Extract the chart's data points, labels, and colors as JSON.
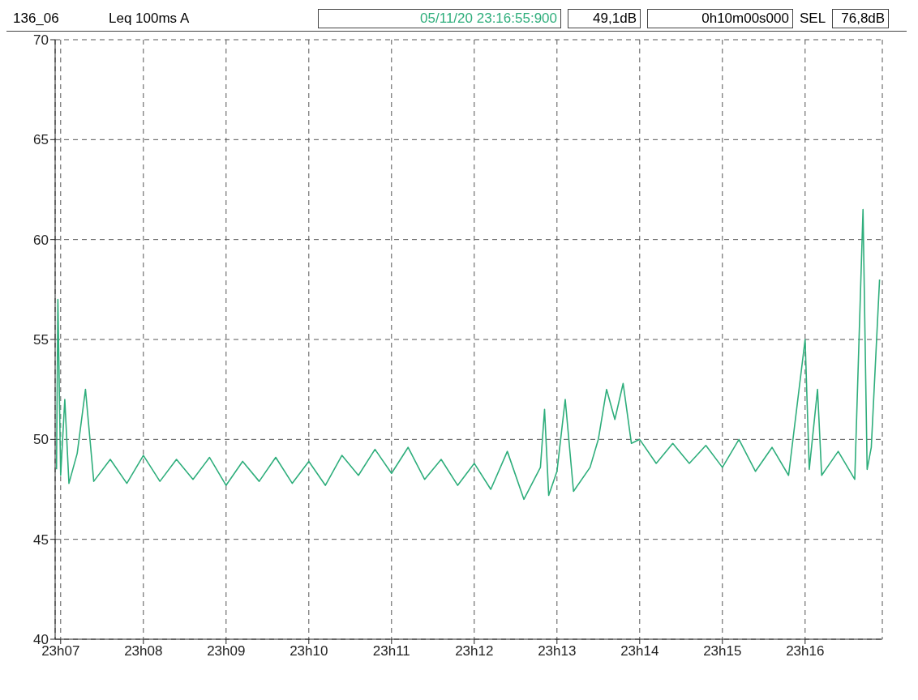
{
  "chart_data": {
    "type": "line",
    "annotations": [
      "136_06",
      "Leq 100ms  A",
      "05/11/20 23:16:55:900",
      "49,1dB",
      "0h10m00s000",
      "SEL",
      "76,8dB"
    ],
    "xlim": [
      "--11-05T23:06:56",
      "--11-05T23:16:56"
    ],
    "xticks": [
      {
        "value": "--11-05T23:07",
        "label": "23h07"
      },
      {
        "value": "--11-05T23:08",
        "label": "23h08"
      },
      {
        "value": "--11-05T23:09",
        "label": "23h09"
      },
      {
        "value": "--11-05T23:10",
        "label": "23h10"
      },
      {
        "value": "--11-05T23:11",
        "label": "23h11"
      },
      {
        "value": "--11-05T23:12",
        "label": "23h12"
      },
      {
        "value": "--11-05T23:13",
        "label": "23h13"
      },
      {
        "value": "--11-05T23:14",
        "label": "23h14"
      },
      {
        "value": "--11-05T23:15",
        "label": "23h15"
      },
      {
        "value": "--11-05T23:16",
        "label": "23h16"
      }
    ],
    "ylim": [
      40,
      70
    ],
    "yticks": [
      40,
      45,
      50,
      55,
      60,
      65,
      70
    ],
    "grid": true,
    "legend": false,
    "marker": "none",
    "line_style": "solid",
    "series": [
      {
        "color": "#2fae7c",
        "x": [
          "--11-05T23:06:57",
          "--11-05T23:06:58",
          "--11-05T23:07:00",
          "--11-05T23:07:03",
          "--11-05T23:07:06",
          "--11-05T23:07:12",
          "--11-05T23:07:18",
          "--11-05T23:07:24",
          "--11-05T23:07:36",
          "--11-05T23:07:48",
          "--11-05T23:08:00",
          "--11-05T23:08:12",
          "--11-05T23:08:24",
          "--11-05T23:08:36",
          "--11-05T23:08:48",
          "--11-05T23:09:00",
          "--11-05T23:09:12",
          "--11-05T23:09:24",
          "--11-05T23:09:36",
          "--11-05T23:09:48",
          "--11-05T23:10:00",
          "--11-05T23:10:12",
          "--11-05T23:10:24",
          "--11-05T23:10:36",
          "--11-05T23:10:48",
          "--11-05T23:11:00",
          "--11-05T23:11:12",
          "--11-05T23:11:24",
          "--11-05T23:11:36",
          "--11-05T23:11:48",
          "--11-05T23:12:00",
          "--11-05T23:12:12",
          "--11-05T23:12:24",
          "--11-05T23:12:36",
          "--11-05T23:12:48",
          "--11-05T23:12:51",
          "--11-05T23:12:54",
          "--11-05T23:13:00",
          "--11-05T23:13:06",
          "--11-05T23:13:12",
          "--11-05T23:13:24",
          "--11-05T23:13:30",
          "--11-05T23:13:36",
          "--11-05T23:13:42",
          "--11-05T23:13:48",
          "--11-05T23:13:54",
          "--11-05T23:14:00",
          "--11-05T23:14:12",
          "--11-05T23:14:24",
          "--11-05T23:14:36",
          "--11-05T23:14:48",
          "--11-05T23:15:00",
          "--11-05T23:15:12",
          "--11-05T23:15:24",
          "--11-05T23:15:36",
          "--11-05T23:15:48",
          "--11-05T23:16:00",
          "--11-05T23:16:03",
          "--11-05T23:16:09",
          "--11-05T23:16:12",
          "--11-05T23:16:24",
          "--11-05T23:16:36",
          "--11-05T23:16:42",
          "--11-05T23:16:45",
          "--11-05T23:16:48",
          "--11-05T23:16:54"
        ],
        "values": [
          48.5,
          57,
          48.2,
          52,
          47.8,
          49.3,
          52.5,
          47.9,
          49.0,
          47.8,
          49.2,
          47.9,
          49.0,
          48.0,
          49.1,
          47.7,
          48.9,
          47.9,
          49.1,
          47.8,
          48.9,
          47.7,
          49.2,
          48.2,
          49.5,
          48.3,
          49.6,
          48.0,
          49.0,
          47.7,
          48.8,
          47.5,
          49.4,
          47.0,
          48.6,
          51.5,
          47.2,
          48.4,
          52.0,
          47.4,
          48.6,
          50.0,
          52.5,
          51.0,
          52.8,
          49.8,
          50.0,
          48.8,
          49.8,
          48.8,
          49.7,
          48.6,
          50.0,
          48.4,
          49.6,
          48.2,
          55.0,
          48.5,
          52.5,
          48.2,
          49.4,
          48.0,
          61.5,
          48.5,
          49.6,
          58.0
        ]
      }
    ]
  }
}
